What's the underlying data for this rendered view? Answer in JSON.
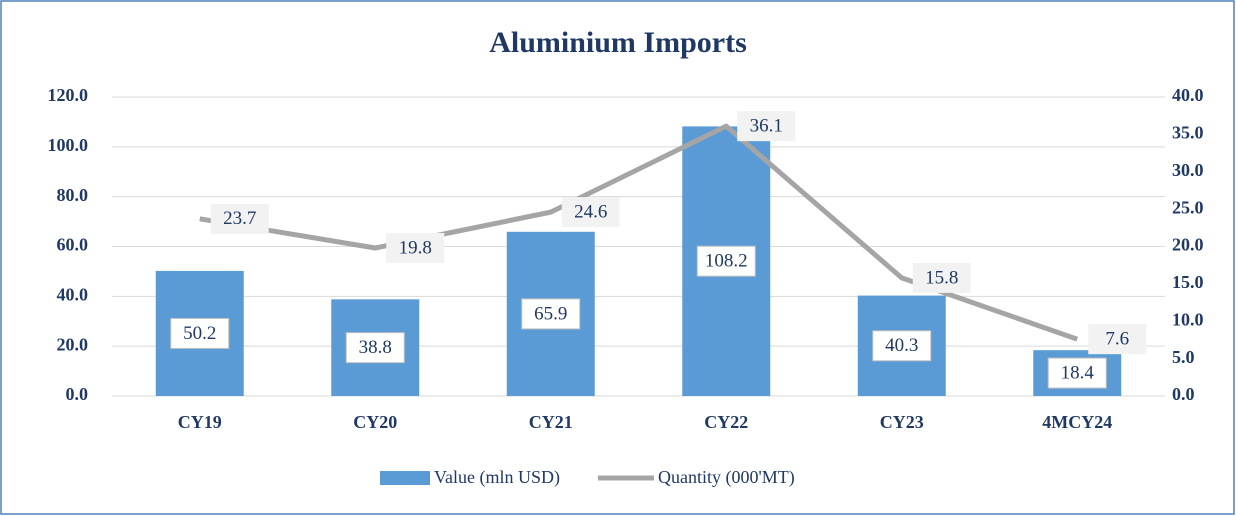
{
  "chart_data": {
    "type": "bar-line",
    "title": "Aluminium Imports",
    "categories": [
      "CY19",
      "CY20",
      "CY21",
      "CY22",
      "CY23",
      "4MCY24"
    ],
    "series": [
      {
        "name": "Value (mln USD)",
        "type": "bar",
        "color": "#5b9bd5",
        "values": [
          50.2,
          38.8,
          65.9,
          108.2,
          40.3,
          18.4
        ]
      },
      {
        "name": "Quantity (000'MT)",
        "type": "line",
        "axis": "y2",
        "color": "#a5a5a5",
        "values": [
          23.7,
          19.8,
          24.6,
          36.1,
          15.8,
          7.6
        ]
      }
    ],
    "ylim": [
      0,
      120
    ],
    "yticks": [
      {
        "value": 0,
        "label": "0.0"
      },
      {
        "value": 20,
        "label": "20.0"
      },
      {
        "value": 40,
        "label": "40.0"
      },
      {
        "value": 60,
        "label": "60.0"
      },
      {
        "value": 80,
        "label": "80.0"
      },
      {
        "value": 100,
        "label": "100.0"
      },
      {
        "value": 120,
        "label": "120.0"
      }
    ],
    "y2lim": [
      0,
      40
    ],
    "y2ticks": [
      {
        "value": 0,
        "label": "0.0"
      },
      {
        "value": 5,
        "label": "5.0"
      },
      {
        "value": 10,
        "label": "10.0"
      },
      {
        "value": 15,
        "label": "15.0"
      },
      {
        "value": 20,
        "label": "20.0"
      },
      {
        "value": 25,
        "label": "25.0"
      },
      {
        "value": 30,
        "label": "30.0"
      },
      {
        "value": 35,
        "label": "35.0"
      },
      {
        "value": 40,
        "label": "40.0"
      }
    ],
    "grid": true,
    "legend": "bottom"
  }
}
